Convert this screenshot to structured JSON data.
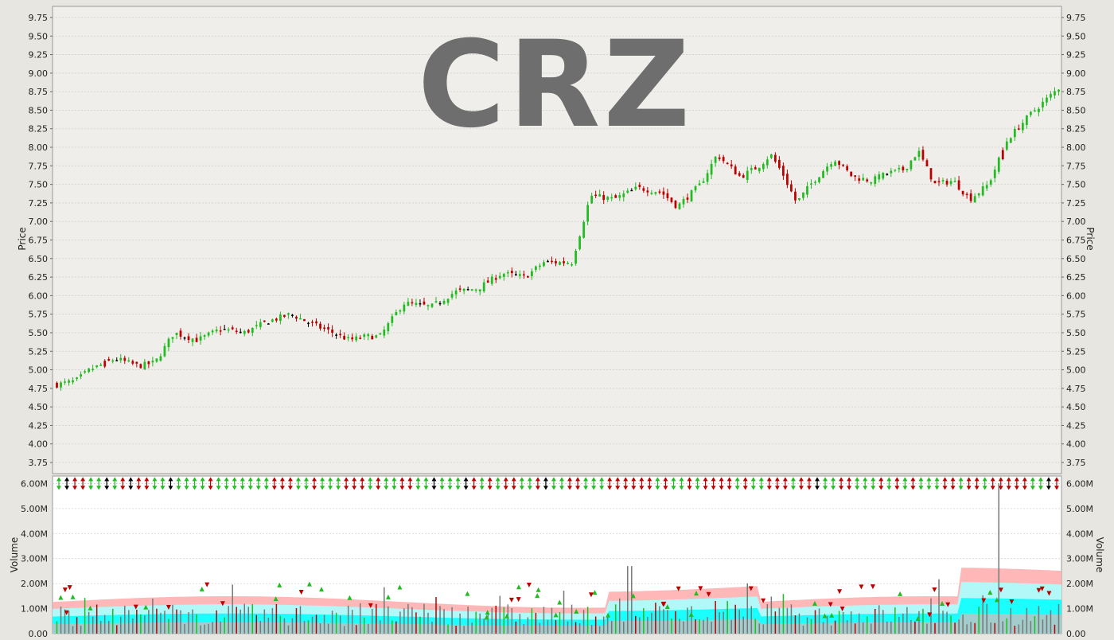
{
  "colors": {
    "background": "#e8e6e1",
    "price_panel_bg": "#f0eeeb",
    "volume_panel_bg": "#ffffff",
    "up": "#22bb22",
    "down": "#bb0000",
    "neutral": "#000000",
    "watermark": "#6e6e6e",
    "grid": "#cfcfcf",
    "volume_band_outer": "#ffaaaa",
    "volume_band_mid": "#aaffff",
    "volume_band_inner": "#00ffff",
    "volume_bar": "#777777"
  },
  "chart_data": [
    {
      "type": "candlestick",
      "title": "CRZ",
      "ylabel_left": "Price",
      "ylabel_right": "Price",
      "ylim": [
        3.6,
        9.9
      ],
      "yticks": [
        "3.75",
        "4.00",
        "4.25",
        "4.50",
        "4.75",
        "5.00",
        "5.25",
        "5.50",
        "5.75",
        "6.00",
        "6.25",
        "6.50",
        "6.75",
        "7.00",
        "7.25",
        "7.50",
        "7.75",
        "8.00",
        "8.25",
        "8.50",
        "8.75",
        "9.00",
        "9.25",
        "9.50",
        "9.75"
      ],
      "grid": true,
      "num_bars": 252,
      "close_anchors": [
        [
          0,
          4.8
        ],
        [
          8,
          4.85
        ],
        [
          14,
          5.0
        ],
        [
          25,
          5.15
        ],
        [
          35,
          5.05
        ],
        [
          42,
          5.1
        ],
        [
          50,
          5.5
        ],
        [
          60,
          5.4
        ],
        [
          70,
          5.55
        ],
        [
          80,
          5.5
        ],
        [
          90,
          5.65
        ],
        [
          100,
          5.75
        ],
        [
          110,
          5.6
        ],
        [
          118,
          5.5
        ],
        [
          125,
          5.4
        ],
        [
          132,
          5.45
        ],
        [
          138,
          5.45
        ],
        [
          148,
          5.9
        ],
        [
          160,
          5.85
        ],
        [
          170,
          6.05
        ],
        [
          180,
          6.1
        ],
        [
          190,
          6.3
        ],
        [
          200,
          6.25
        ],
        [
          208,
          6.45
        ],
        [
          220,
          6.45
        ],
        [
          228,
          7.35
        ],
        [
          238,
          7.3
        ],
        [
          248,
          7.45
        ],
        [
          258,
          7.4
        ],
        [
          265,
          7.2
        ],
        [
          275,
          7.5
        ],
        [
          282,
          7.9
        ],
        [
          292,
          7.6
        ],
        [
          300,
          7.75
        ],
        [
          305,
          7.9
        ],
        [
          310,
          7.65
        ],
        [
          316,
          7.25
        ],
        [
          322,
          7.5
        ],
        [
          332,
          7.85
        ],
        [
          340,
          7.6
        ],
        [
          348,
          7.55
        ],
        [
          355,
          7.65
        ],
        [
          362,
          7.7
        ],
        [
          368,
          7.95
        ],
        [
          375,
          7.5
        ],
        [
          383,
          7.55
        ],
        [
          390,
          7.3
        ],
        [
          398,
          7.5
        ],
        [
          406,
          8.1
        ],
        [
          416,
          8.45
        ],
        [
          428,
          8.8
        ]
      ],
      "ohlc_note": ""
    },
    {
      "type": "bar",
      "ylabel_left": "Volume",
      "ylabel_right": "Volume",
      "ylim": [
        0,
        6300000
      ],
      "yticks": [
        "0.00",
        "1.00M",
        "2.00M",
        "3.00M",
        "4.00M",
        "5.00M",
        "6.00M"
      ],
      "grid": true,
      "spike": {
        "label": "6.00M",
        "value": 6000000
      }
    }
  ]
}
